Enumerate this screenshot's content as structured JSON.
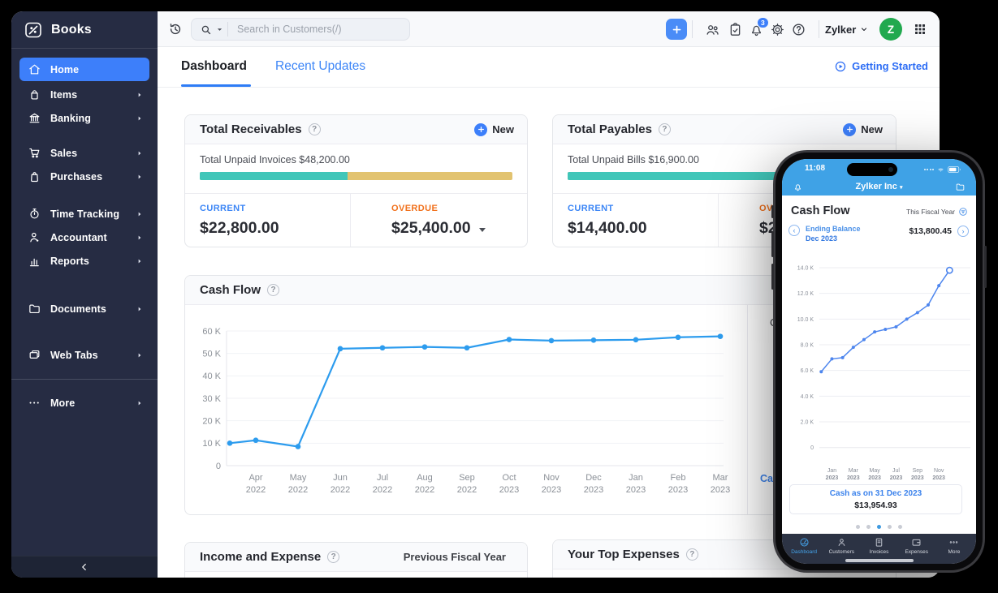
{
  "colors": {
    "accent_blue": "#3D7FFA",
    "link_blue": "#3E86F7",
    "teal": "#41C6B9",
    "sand": "#E2C370",
    "orange_overdue": "#F1711C",
    "current_blue": "#3C86F6",
    "chart_blue": "#2D9CEE",
    "phone_bar_blue": "#3FA2E6",
    "phone_line_blue": "#4E86EE",
    "avatar_green": "#21A94F",
    "sidebar_bg": "#262C43"
  },
  "sidebar": {
    "logo_text": "Books",
    "items": [
      {
        "id": "home",
        "label": "Home",
        "icon": "home-icon",
        "active": true,
        "chevron": false,
        "gap_before": 0
      },
      {
        "id": "items",
        "label": "Items",
        "icon": "items-icon",
        "chevron": true,
        "gap_before": 2
      },
      {
        "id": "banking",
        "label": "Banking",
        "icon": "banking-icon",
        "chevron": true,
        "gap_before": 0
      },
      {
        "id": "sales",
        "label": "Sales",
        "icon": "sales-icon",
        "chevron": true,
        "gap_before": 14
      },
      {
        "id": "purchases",
        "label": "Purchases",
        "icon": "purchases-icon",
        "chevron": true,
        "gap_before": 0
      },
      {
        "id": "time-tracking",
        "label": "Time Tracking",
        "icon": "time-tracking-icon",
        "chevron": true,
        "gap_before": 17
      },
      {
        "id": "accountant",
        "label": "Accountant",
        "icon": "accountant-icon",
        "chevron": true,
        "gap_before": 0
      },
      {
        "id": "reports",
        "label": "Reports",
        "icon": "reports-icon",
        "chevron": true,
        "gap_before": 0
      },
      {
        "id": "documents",
        "label": "Documents",
        "icon": "documents-icon",
        "chevron": true,
        "gap_before": 30
      },
      {
        "id": "web-tabs",
        "label": "Web Tabs",
        "icon": "web-tabs-icon",
        "chevron": true,
        "gap_before": 28
      },
      {
        "id": "more",
        "label": "More",
        "icon": "more-icon",
        "chevron": true,
        "gap_before": 15,
        "divider_before": true
      }
    ]
  },
  "topbar": {
    "search_placeholder": "Search in Customers(/)",
    "notification_count": "3",
    "org_name": "Zylker",
    "avatar_letter": "Z"
  },
  "page": {
    "tab_dashboard": "Dashboard",
    "tab_recent_updates": "Recent Updates",
    "getting_started": "Getting Started"
  },
  "receivables": {
    "title": "Total Receivables",
    "new_label": "New",
    "summary": "Total Unpaid Invoices $48,200.00",
    "current_label": "CURRENT",
    "current_value": "$22,800.00",
    "overdue_label": "OVERDUE",
    "overdue_value": "$25,400.00",
    "progress_current_pct": 47.3
  },
  "payables": {
    "title": "Total Payables",
    "new_label": "New",
    "summary": "Total Unpaid Bills $16,900.00",
    "current_label": "CURRENT",
    "current_value": "$14,400.00",
    "overdue_label": "OVERDUE",
    "overdue_value": "$2,500.00",
    "progress_current_pct": 85
  },
  "cashflow": {
    "title": "Cash Flow",
    "right_top_fragment": "Cash",
    "right_link_fragment": "Cash as on"
  },
  "income_expense": {
    "title": "Income and Expense",
    "period": "Previous Fiscal Year"
  },
  "top_expenses": {
    "title": "Your Top Expenses"
  },
  "phone": {
    "time": "11:08",
    "org_name": "Zylker Inc",
    "screen_title": "Cash Flow",
    "period": "This Fiscal Year",
    "balance_label_line1": "Ending Balance",
    "balance_label_line2": "Dec 2023",
    "balance_value": "$13,800.45",
    "footer_link": "Cash as on 31 Dec 2023",
    "footer_value": "$13,954.93",
    "page_dots": 5,
    "active_dot": 2,
    "tabs": [
      {
        "label": "Dashboard",
        "icon": "dashboard-icon",
        "active": true
      },
      {
        "label": "Customers",
        "icon": "customers-icon",
        "active": false
      },
      {
        "label": "Invoices",
        "icon": "invoices-icon",
        "active": false
      },
      {
        "label": "Expenses",
        "icon": "expenses-icon",
        "active": false
      },
      {
        "label": "More",
        "icon": "more-dots-icon",
        "active": false
      }
    ]
  },
  "chart_data": [
    {
      "name": "cash-flow-main",
      "type": "line",
      "title": "Cash Flow",
      "x_labels": [
        "Apr 2022",
        "May 2022",
        "Jun 2022",
        "Jul 2022",
        "Aug 2022",
        "Sep 2022",
        "Oct 2023",
        "Nov 2023",
        "Dec 2023",
        "Jan 2023",
        "Feb 2023",
        "Mar 2023"
      ],
      "values_k": [
        10.0,
        11.3,
        8.5,
        52.1,
        52.5,
        52.9,
        52.5,
        56.2,
        55.7,
        55.9,
        56.1,
        57.2,
        57.6
      ],
      "first_point_unlabeled": true,
      "y_ticks": [
        "60 K",
        "50 K",
        "40 K",
        "30 K",
        "20 K",
        "10 K",
        "0"
      ],
      "ylim": [
        0,
        60000
      ],
      "legend": "none",
      "grid": true
    },
    {
      "name": "cash-flow-phone",
      "type": "line",
      "title": "Cash Flow (mobile)",
      "x_labels": [
        "Jan 2023",
        "Mar 2023",
        "May 2023",
        "Jul 2023",
        "Sep 2023",
        "Nov 2023"
      ],
      "values_k": [
        5.9,
        6.9,
        7.0,
        7.8,
        8.4,
        9.0,
        9.2,
        9.4,
        10.0,
        10.5,
        11.1,
        12.6,
        13.8
      ],
      "y_ticks": [
        "14.0 K",
        "12.0 K",
        "10.0 K",
        "8.0 K",
        "6.0 K",
        "4.0 K",
        "2.0 K",
        "0"
      ],
      "ylim": [
        0,
        14000
      ],
      "last_point_open": true,
      "legend": "none",
      "grid": true
    }
  ]
}
